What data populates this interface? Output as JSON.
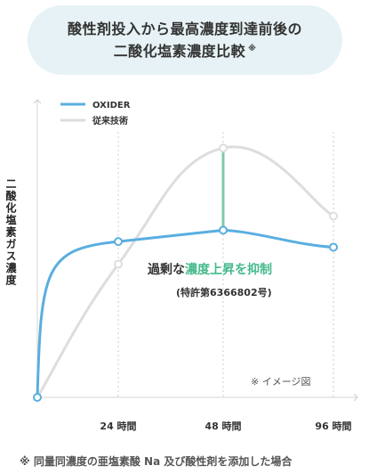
{
  "title": {
    "line1": "酸性剤投入から最高濃度到達前後の",
    "line2": "二酸化塩素濃度比較",
    "mark": "※"
  },
  "chart_data": {
    "type": "line",
    "ylabel": "二酸化塩素ガス濃度",
    "x_ticks": [
      {
        "x": 24,
        "label": "24 時間"
      },
      {
        "x": 48,
        "label": "48 時間"
      },
      {
        "x": 96,
        "label": "96 時間"
      }
    ],
    "legend": {
      "placement": "top-left"
    },
    "series": [
      {
        "name": "OXIDER",
        "color": "#5aaee0",
        "points": [
          [
            0,
            0
          ],
          [
            24,
            0.55
          ],
          [
            48,
            0.59
          ],
          [
            96,
            0.53
          ]
        ]
      },
      {
        "name": "従来技術",
        "color": "#dddddd",
        "points": [
          [
            0,
            0
          ],
          [
            24,
            0.47
          ],
          [
            48,
            0.88
          ],
          [
            96,
            0.64
          ]
        ]
      }
    ],
    "highlight_color": "#7ccaa8"
  },
  "annotation": {
    "prefix": "過剰な",
    "highlight": "濃度上昇を抑制",
    "patent": "(特許第6366802号)"
  },
  "image_note": "※ イメージ図",
  "footnote": "※ 同量同濃度の亜塩素酸 Na 及び酸性剤を添加した場合"
}
